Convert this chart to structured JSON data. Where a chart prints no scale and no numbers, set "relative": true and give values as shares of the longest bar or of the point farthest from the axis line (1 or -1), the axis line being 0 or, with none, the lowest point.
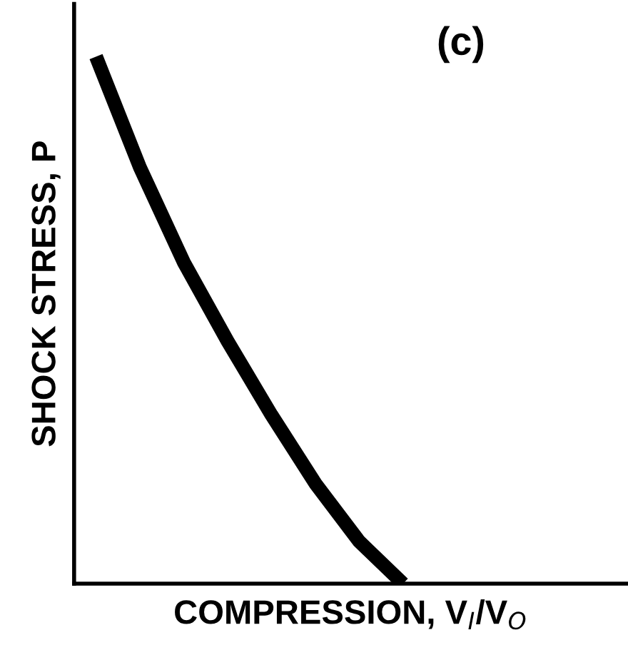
{
  "chart_data": {
    "type": "line",
    "relative": true,
    "xlabel": "COMPRESSION, V$_{I}$/V$_{O}$",
    "ylabel": "SHOCK STRESS, P",
    "annotations": [
      "(c)"
    ],
    "categories": [
      null,
      null,
      null,
      null,
      null,
      null,
      null,
      null,
      null,
      null,
      null,
      null,
      null
    ],
    "series": [
      {
        "color": "#000000",
        "values": [
          1,
          0.79,
          0.61,
          0.46,
          0.32,
          0.19,
          0.08,
          0,
          null,
          null,
          null,
          null,
          null
        ]
      }
    ],
    "grid": false,
    "legend": false,
    "marker": "none",
    "line_style": "solid",
    "tick_labels": false
  }
}
